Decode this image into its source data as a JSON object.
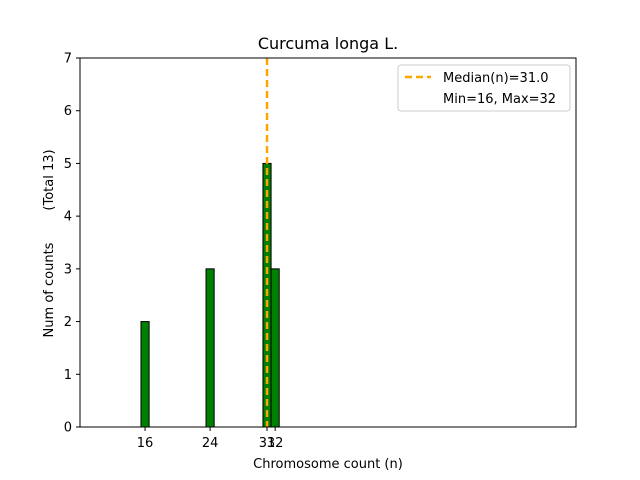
{
  "chart_data": {
    "type": "bar",
    "title": "Curcuma longa L.",
    "xlabel": "Chromosome count (n)",
    "ylabel": "Num of counts",
    "ylabel_extra": "(Total 13)",
    "xlim": [
      8,
      69
    ],
    "ylim": [
      0,
      7
    ],
    "yticks": [
      0,
      1,
      2,
      3,
      4,
      5,
      6,
      7
    ],
    "xticks": [
      16,
      24,
      31,
      32
    ],
    "bar_width": 1,
    "bars": [
      {
        "x": 16,
        "count": 2
      },
      {
        "x": 24,
        "count": 3
      },
      {
        "x": 31,
        "count": 5
      },
      {
        "x": 32,
        "count": 3
      }
    ],
    "median": 31.0,
    "grid": false,
    "legend": {
      "placement": "top-right",
      "entries": [
        {
          "label": "Median(n)=31.0",
          "style": "dashed-line"
        },
        {
          "label": "Min=16, Max=32",
          "style": "none"
        }
      ]
    },
    "colors": {
      "bar_fill": "#008000",
      "bar_edge": "#000000",
      "median_line": "#FFA500"
    }
  }
}
